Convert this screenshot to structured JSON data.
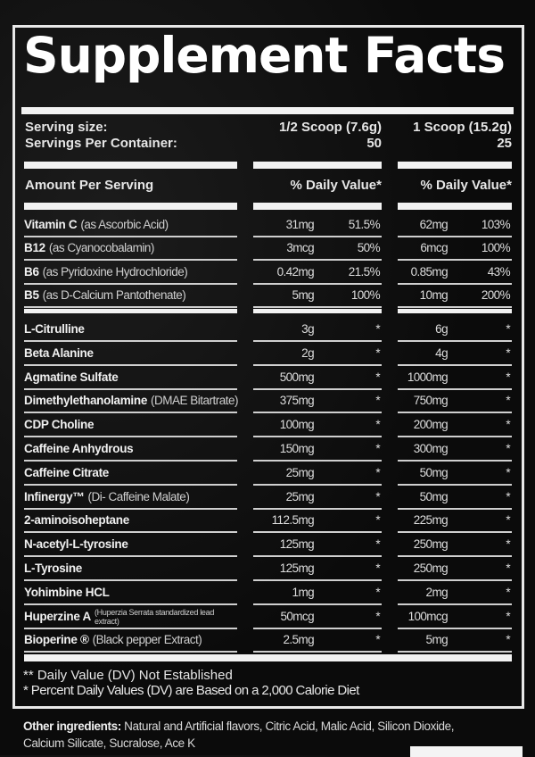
{
  "title": "Supplement Facts",
  "serving": {
    "size_label": "Serving size:",
    "per_container_label": "Servings Per Container:",
    "col1_size": "1/2 Scoop (7.6g)",
    "col2_size": "1 Scoop (15.2g)",
    "col1_servings": "50",
    "col2_servings": "25"
  },
  "header": {
    "amount_label": "Amount Per Serving",
    "dv_col1": "% Daily Value*",
    "dv_col2": "% Daily Value*"
  },
  "vitamins": [
    {
      "name": "Vitamin C",
      "sub": "(as Ascorbic Acid)",
      "amt1": "31mg",
      "dv1": "51.5%",
      "amt2": "62mg",
      "dv2": "103%"
    },
    {
      "name": "B12",
      "sub": "(as Cyanocobalamin)",
      "amt1": "3mcg",
      "dv1": "50%",
      "amt2": "6mcg",
      "dv2": "100%"
    },
    {
      "name": "B6",
      "sub": "(as Pyridoxine Hydrochloride)",
      "amt1": "0.42mg",
      "dv1": "21.5%",
      "amt2": "0.85mg",
      "dv2": "43%"
    },
    {
      "name": "B5",
      "sub": "(as D-Calcium Pantothenate)",
      "amt1": "5mg",
      "dv1": "100%",
      "amt2": "10mg",
      "dv2": "200%"
    }
  ],
  "ingredients": [
    {
      "name": "L-Citrulline",
      "sub": "",
      "amt1": "3g",
      "dv1": "*",
      "amt2": "6g",
      "dv2": "*"
    },
    {
      "name": "Beta Alanine",
      "sub": "",
      "amt1": "2g",
      "dv1": "*",
      "amt2": "4g",
      "dv2": "*"
    },
    {
      "name": "Agmatine Sulfate",
      "sub": "",
      "amt1": "500mg",
      "dv1": "*",
      "amt2": "1000mg",
      "dv2": "*"
    },
    {
      "name": "Dimethylethanolamine",
      "sub": "(DMAE Bitartrate)",
      "amt1": "375mg",
      "dv1": "*",
      "amt2": "750mg",
      "dv2": "*"
    },
    {
      "name": "CDP Choline",
      "sub": "",
      "amt1": "100mg",
      "dv1": "*",
      "amt2": "200mg",
      "dv2": "*"
    },
    {
      "name": "Caffeine Anhydrous",
      "sub": "",
      "amt1": "150mg",
      "dv1": "*",
      "amt2": "300mg",
      "dv2": "*"
    },
    {
      "name": "Caffeine Citrate",
      "sub": "",
      "amt1": "25mg",
      "dv1": "*",
      "amt2": "50mg",
      "dv2": "*"
    },
    {
      "name": "Infinergy™",
      "sub": "(Di- Caffeine Malate)",
      "amt1": "25mg",
      "dv1": "*",
      "amt2": "50mg",
      "dv2": "*"
    },
    {
      "name": "2-aminoisoheptane",
      "sub": "",
      "amt1": "112.5mg",
      "dv1": "*",
      "amt2": "225mg",
      "dv2": "*"
    },
    {
      "name": "N-acetyl-L-tyrosine",
      "sub": "",
      "amt1": "125mg",
      "dv1": "*",
      "amt2": "250mg",
      "dv2": "*"
    },
    {
      "name": "L-Tyrosine",
      "sub": "",
      "amt1": "125mg",
      "dv1": "*",
      "amt2": "250mg",
      "dv2": "*"
    },
    {
      "name": "Yohimbine HCL",
      "sub": "",
      "amt1": "1mg",
      "dv1": "*",
      "amt2": "2mg",
      "dv2": "*"
    },
    {
      "name": "Huperzine A",
      "sub": "(Huperzia Serrata standardized lead extract)",
      "amt1": "50mcg",
      "dv1": "*",
      "amt2": "100mcg",
      "dv2": "*"
    },
    {
      "name": "Bioperine ®",
      "sub": "(Black pepper Extract)",
      "amt1": "2.5mg",
      "dv1": "*",
      "amt2": "5mg",
      "dv2": "*"
    }
  ],
  "footnotes": {
    "not_established": "** Daily Value (DV) Not Established",
    "percent_basis": "* Percent Daily Values (DV) are Based on a 2,000 Calorie Diet"
  },
  "other_ingredients": {
    "label": "Other ingredients:",
    "line1": "Natural and Artificial flavors, Citric Acid, Malic Acid, Silicon Dioxide,",
    "line2": "Calcium Silicate, Sucralose, Ace K"
  }
}
